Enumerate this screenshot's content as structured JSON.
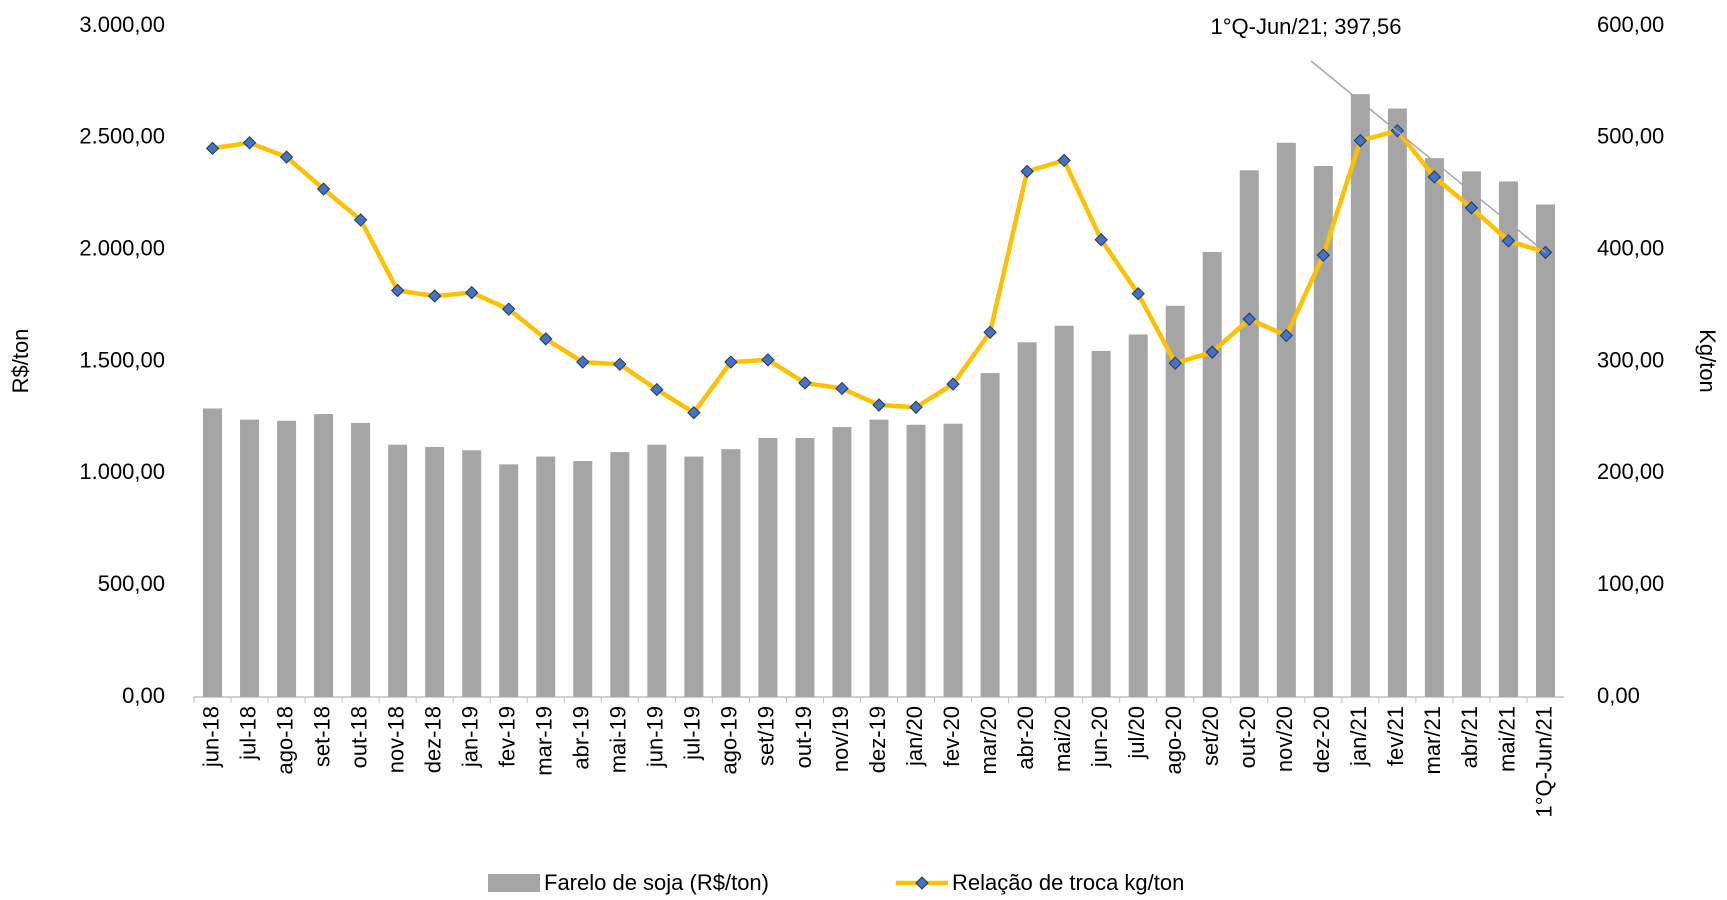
{
  "chart_data": {
    "type": "bar_line",
    "categories": [
      "jun-18",
      "jul-18",
      "ago-18",
      "set-18",
      "out-18",
      "nov-18",
      "dez-18",
      "jan-19",
      "fev-19",
      "mar-19",
      "abr-19",
      "mai-19",
      "jun-19",
      "jul-19",
      "ago-19",
      "set/19",
      "out-19",
      "nov/19",
      "dez-19",
      "jan/20",
      "fev-20",
      "mar/20",
      "abr-20",
      "mai/20",
      "jun-20",
      "jul/20",
      "ago-20",
      "set/20",
      "out-20",
      "nov/20",
      "dez-20",
      "jan/21",
      "fev/21",
      "mar/21",
      "abr/21",
      "mai/21",
      "1°Q-Jun/21"
    ],
    "series": [
      {
        "name": "Farelo de soja (R$/ton)",
        "type": "bar",
        "color": "#a5a5a5",
        "axis": "y",
        "values": [
          1290,
          1240,
          1235,
          1265,
          1225,
          1128,
          1118,
          1103,
          1040,
          1075,
          1055,
          1095,
          1128,
          1075,
          1108,
          1158,
          1158,
          1207,
          1240,
          1217,
          1222,
          1448,
          1586,
          1660,
          1547,
          1621,
          1749,
          1990,
          2355,
          2478,
          2374,
          2695,
          2631,
          2409,
          2350,
          2305,
          2202
        ]
      },
      {
        "name": "Relação de troca kg/ton",
        "type": "line",
        "color": "#ffc000",
        "marker_color": "#4472c4",
        "axis": "y2",
        "values": [
          490.6,
          495.6,
          482.8,
          454.2,
          426.6,
          363.5,
          358.6,
          361.6,
          346.8,
          320.2,
          299.5,
          297.5,
          274.9,
          254.2,
          299.5,
          301.5,
          280.8,
          275.9,
          261.1,
          259.1,
          279.8,
          326.1,
          470,
          479.8,
          408.9,
          360.6,
          298.5,
          308.4,
          337.9,
          323.2,
          395.1,
          497.5,
          506.4,
          465,
          437.4,
          407.9,
          397.56
        ]
      }
    ],
    "ylabel": "R$/ton",
    "y2label": "Kg/ton",
    "ylim": [
      0,
      3000
    ],
    "yticks": [
      {
        "value": 0,
        "label": "0,00"
      },
      {
        "value": 500,
        "label": "500,00"
      },
      {
        "value": 1000,
        "label": "1.000,00"
      },
      {
        "value": 1500,
        "label": "1.500,00"
      },
      {
        "value": 2000,
        "label": "2.000,00"
      },
      {
        "value": 2500,
        "label": "2.500,00"
      },
      {
        "value": 3000,
        "label": "3.000,00"
      }
    ],
    "y2lim": [
      0,
      600
    ],
    "y2ticks": [
      {
        "value": 0,
        "label": "0,00"
      },
      {
        "value": 100,
        "label": "100,00"
      },
      {
        "value": 200,
        "label": "200,00"
      },
      {
        "value": 300,
        "label": "300,00"
      },
      {
        "value": 400,
        "label": "400,00"
      },
      {
        "value": 500,
        "label": "500,00"
      },
      {
        "value": 600,
        "label": "600,00"
      }
    ],
    "annotation": "1°Q-Jun/21; 397,56"
  }
}
